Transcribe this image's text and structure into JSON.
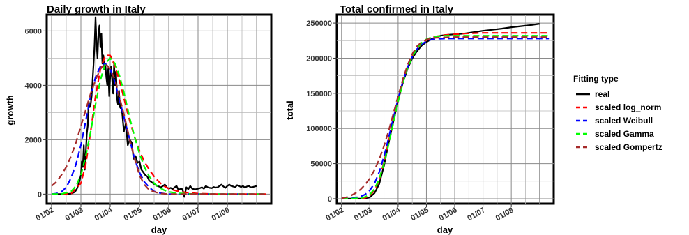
{
  "legend": {
    "title": "Fitting type",
    "placement": "right",
    "entries": [
      {
        "label": "real",
        "color": "#000000",
        "dash": "solid"
      },
      {
        "label": "scaled log_norm",
        "color": "#ff0000",
        "dash": "dashed"
      },
      {
        "label": "scaled Weibull",
        "color": "#0000ff",
        "dash": "dashed"
      },
      {
        "label": "scaled Gamma",
        "color": "#00ff00",
        "dash": "dashed"
      },
      {
        "label": "scaled Gompertz",
        "color": "#a52a2a",
        "dash": "dashed"
      }
    ]
  },
  "chart_data": [
    {
      "type": "line",
      "title": "Daily growth in  Italy",
      "xlabel": "day",
      "ylabel": "growth",
      "x_tick_labels": [
        "01/02",
        "01/03",
        "01/04",
        "01/05",
        "01/06",
        "01/07",
        "01/08"
      ],
      "y_ticks": [
        0,
        2000,
        4000,
        6000
      ],
      "xlim": [
        -5,
        225
      ],
      "ylim": [
        -350,
        6600
      ],
      "grid": true,
      "series": [
        {
          "name": "real",
          "color": "#000000",
          "dash": "solid",
          "x": [
            0,
            5,
            10,
            15,
            20,
            24,
            26,
            28,
            30,
            31,
            32,
            33,
            34,
            35,
            36,
            37,
            38,
            39,
            40,
            41,
            42,
            43,
            44,
            45,
            46,
            47,
            48,
            49,
            50,
            51,
            52,
            53,
            54,
            55,
            56,
            57,
            58,
            59,
            60,
            61,
            62,
            63,
            64,
            65,
            66,
            67,
            68,
            69,
            70,
            72,
            74,
            76,
            78,
            80,
            82,
            84,
            86,
            88,
            90,
            92,
            94,
            96,
            98,
            100,
            102,
            104,
            106,
            108,
            110,
            112,
            114,
            116,
            118,
            120,
            122,
            124,
            126,
            128,
            130,
            132,
            134,
            136,
            138,
            140,
            142,
            144,
            146,
            148,
            150,
            152,
            154,
            156,
            158,
            160,
            162,
            164,
            166,
            168,
            170,
            172,
            174,
            176,
            178,
            180,
            182,
            184,
            186,
            188,
            190,
            192,
            194,
            196,
            198,
            200,
            202,
            204,
            206,
            208,
            210
          ],
          "y": [
            0,
            0,
            0,
            0,
            20,
            80,
            200,
            400,
            700,
            1200,
            1000,
            1800,
            900,
            1500,
            2200,
            2500,
            3400,
            3200,
            3300,
            3600,
            4200,
            4800,
            5500,
            6500,
            5600,
            5000,
            5900,
            6200,
            5400,
            5900,
            4800,
            5100,
            4600,
            4800,
            4300,
            4000,
            4600,
            3600,
            4300,
            4700,
            4200,
            3700,
            4800,
            4000,
            4500,
            3500,
            3300,
            3800,
            3200,
            3100,
            2300,
            2600,
            1800,
            2000,
            1900,
            1300,
            1400,
            1150,
            1200,
            900,
            800,
            700,
            650,
            500,
            450,
            400,
            350,
            300,
            280,
            250,
            300,
            350,
            250,
            200,
            230,
            180,
            250,
            300,
            150,
            200,
            180,
            -100,
            250,
            180,
            300,
            200,
            180,
            180,
            200,
            220,
            250,
            200,
            300,
            250,
            230,
            220,
            260,
            240,
            250,
            300,
            350,
            280,
            230,
            300,
            350,
            300,
            280,
            250,
            330,
            300,
            260,
            300,
            240,
            280,
            300,
            250,
            260,
            280,
            300
          ]
        },
        {
          "name": "scaled log_norm",
          "color": "#ff0000",
          "dash": "dashed",
          "x": [
            0,
            10,
            20,
            30,
            35,
            40,
            45,
            50,
            55,
            60,
            65,
            70,
            75,
            80,
            85,
            90,
            95,
            100,
            105,
            110,
            115,
            120,
            130,
            140,
            150,
            160,
            170,
            180,
            190,
            200,
            210,
            220
          ],
          "y": [
            0,
            0,
            20,
            400,
            1100,
            2300,
            3600,
            4600,
            5100,
            5100,
            4700,
            4100,
            3400,
            2700,
            2100,
            1600,
            1200,
            900,
            650,
            450,
            300,
            200,
            100,
            50,
            20,
            10,
            0,
            0,
            0,
            0,
            0,
            0
          ]
        },
        {
          "name": "scaled Weibull",
          "color": "#0000ff",
          "dash": "dashed",
          "x": [
            0,
            5,
            10,
            15,
            20,
            25,
            30,
            35,
            40,
            45,
            50,
            55,
            60,
            65,
            70,
            75,
            80,
            85,
            90,
            95,
            100,
            105,
            110,
            115,
            120,
            130,
            140,
            150,
            160,
            170,
            180,
            190,
            200,
            210,
            220
          ],
          "y": [
            0,
            20,
            80,
            250,
            600,
            1100,
            1800,
            2700,
            3600,
            4300,
            4700,
            4800,
            4600,
            4100,
            3400,
            2700,
            2000,
            1300,
            800,
            450,
            250,
            100,
            50,
            20,
            0,
            0,
            0,
            0,
            0,
            0,
            0,
            0,
            0,
            0,
            0
          ]
        },
        {
          "name": "scaled Gamma",
          "color": "#00ff00",
          "dash": "dashed",
          "x": [
            0,
            10,
            20,
            25,
            30,
            35,
            40,
            45,
            50,
            55,
            60,
            65,
            70,
            75,
            80,
            85,
            90,
            95,
            100,
            105,
            110,
            115,
            120,
            130,
            140,
            150,
            160,
            170,
            180,
            190,
            200,
            210,
            220
          ],
          "y": [
            0,
            5,
            100,
            300,
            700,
            1400,
            2300,
            3300,
            4200,
            4800,
            5000,
            4800,
            4300,
            3600,
            2800,
            2100,
            1500,
            1000,
            650,
            400,
            250,
            150,
            80,
            30,
            10,
            0,
            0,
            0,
            0,
            0,
            0,
            0,
            0
          ]
        },
        {
          "name": "scaled Gompertz",
          "color": "#a52a2a",
          "dash": "dashed",
          "x": [
            0,
            5,
            10,
            15,
            20,
            25,
            30,
            35,
            40,
            45,
            50,
            55,
            60,
            65,
            70,
            75,
            80,
            85,
            90,
            95,
            100,
            110,
            120,
            130,
            140,
            150,
            160,
            170,
            180,
            190,
            200,
            210,
            220
          ],
          "y": [
            300,
            450,
            700,
            1000,
            1400,
            1900,
            2500,
            3100,
            3700,
            4200,
            4600,
            4800,
            4600,
            4200,
            3500,
            2800,
            2000,
            1300,
            700,
            350,
            150,
            30,
            0,
            0,
            0,
            0,
            0,
            0,
            0,
            0,
            0,
            0,
            0
          ]
        }
      ]
    },
    {
      "type": "line",
      "title": "Total confirmed in  Italy",
      "xlabel": "day",
      "ylabel": "total",
      "x_tick_labels": [
        "01/02",
        "01/03",
        "01/04",
        "01/05",
        "01/06",
        "01/07",
        "01/08"
      ],
      "y_ticks": [
        0,
        50000,
        100000,
        150000,
        200000,
        250000
      ],
      "xlim": [
        -5,
        225
      ],
      "ylim": [
        -7000,
        262000
      ],
      "grid": true,
      "series": [
        {
          "name": "real",
          "color": "#000000",
          "dash": "solid",
          "x": [
            0,
            10,
            20,
            25,
            30,
            35,
            40,
            45,
            50,
            55,
            60,
            65,
            70,
            75,
            80,
            85,
            90,
            95,
            100,
            105,
            110,
            120,
            130,
            140,
            150,
            160,
            170,
            180,
            190,
            200,
            210
          ],
          "y": [
            0,
            0,
            100,
            600,
            2000,
            8000,
            21000,
            47000,
            80000,
            110000,
            140000,
            165000,
            185000,
            200000,
            210000,
            218000,
            223000,
            227000,
            230000,
            232000,
            233000,
            234000,
            235000,
            237000,
            239000,
            240500,
            242000,
            244000,
            245500,
            247000,
            249000
          ]
        },
        {
          "name": "scaled log_norm",
          "color": "#ff0000",
          "dash": "dashed",
          "x": [
            0,
            10,
            20,
            25,
            30,
            35,
            40,
            45,
            50,
            55,
            60,
            65,
            70,
            75,
            80,
            85,
            90,
            95,
            100,
            110,
            120,
            130,
            140,
            150,
            160,
            170,
            180,
            190,
            200,
            210,
            220
          ],
          "y": [
            0,
            0,
            200,
            1200,
            4500,
            12000,
            27000,
            52000,
            82000,
            113000,
            142000,
            168000,
            188000,
            203000,
            214000,
            221000,
            226000,
            229000,
            231000,
            233000,
            234000,
            235000,
            235500,
            236000,
            236000,
            236000,
            236000,
            236000,
            236000,
            236000,
            236000
          ]
        },
        {
          "name": "scaled Weibull",
          "color": "#0000ff",
          "dash": "dashed",
          "x": [
            0,
            10,
            20,
            25,
            30,
            35,
            40,
            45,
            50,
            55,
            60,
            65,
            70,
            75,
            80,
            85,
            90,
            95,
            100,
            110,
            120,
            130,
            140,
            150,
            160,
            170,
            180,
            190,
            200,
            210,
            220
          ],
          "y": [
            0,
            300,
            3000,
            6000,
            12000,
            22000,
            38000,
            60000,
            87000,
            115000,
            142000,
            167000,
            187000,
            202000,
            213000,
            220000,
            224000,
            226500,
            227500,
            228000,
            228000,
            228000,
            228000,
            228000,
            228000,
            228000,
            228000,
            228000,
            228000,
            228000,
            228000
          ]
        },
        {
          "name": "scaled Gamma",
          "color": "#00ff00",
          "dash": "dashed",
          "x": [
            0,
            10,
            20,
            25,
            30,
            35,
            40,
            45,
            50,
            55,
            60,
            65,
            70,
            75,
            80,
            85,
            90,
            95,
            100,
            110,
            120,
            130,
            140,
            150,
            160,
            170,
            180,
            190,
            200,
            210,
            220
          ],
          "y": [
            0,
            0,
            700,
            2500,
            6000,
            14000,
            28000,
            50000,
            78000,
            108000,
            138000,
            165000,
            186000,
            202000,
            214000,
            222000,
            227000,
            229500,
            231000,
            232000,
            232000,
            232000,
            232000,
            232000,
            232000,
            232000,
            232000,
            232000,
            232000,
            232000,
            232000
          ]
        },
        {
          "name": "scaled Gompertz",
          "color": "#a52a2a",
          "dash": "dashed",
          "x": [
            0,
            5,
            10,
            15,
            20,
            25,
            30,
            35,
            40,
            45,
            50,
            55,
            60,
            65,
            70,
            75,
            80,
            85,
            90,
            95,
            100,
            110,
            120,
            130,
            140,
            150,
            160,
            170,
            180,
            190,
            200,
            210,
            220
          ],
          "y": [
            500,
            2000,
            4500,
            8000,
            13000,
            20000,
            29000,
            41000,
            56000,
            75000,
            97000,
            121000,
            146000,
            170000,
            190000,
            206000,
            217000,
            223000,
            226500,
            228000,
            229000,
            229500,
            230000,
            230000,
            230000,
            230000,
            230000,
            230000,
            230000,
            230000,
            230000,
            230000,
            230000
          ]
        }
      ]
    }
  ]
}
